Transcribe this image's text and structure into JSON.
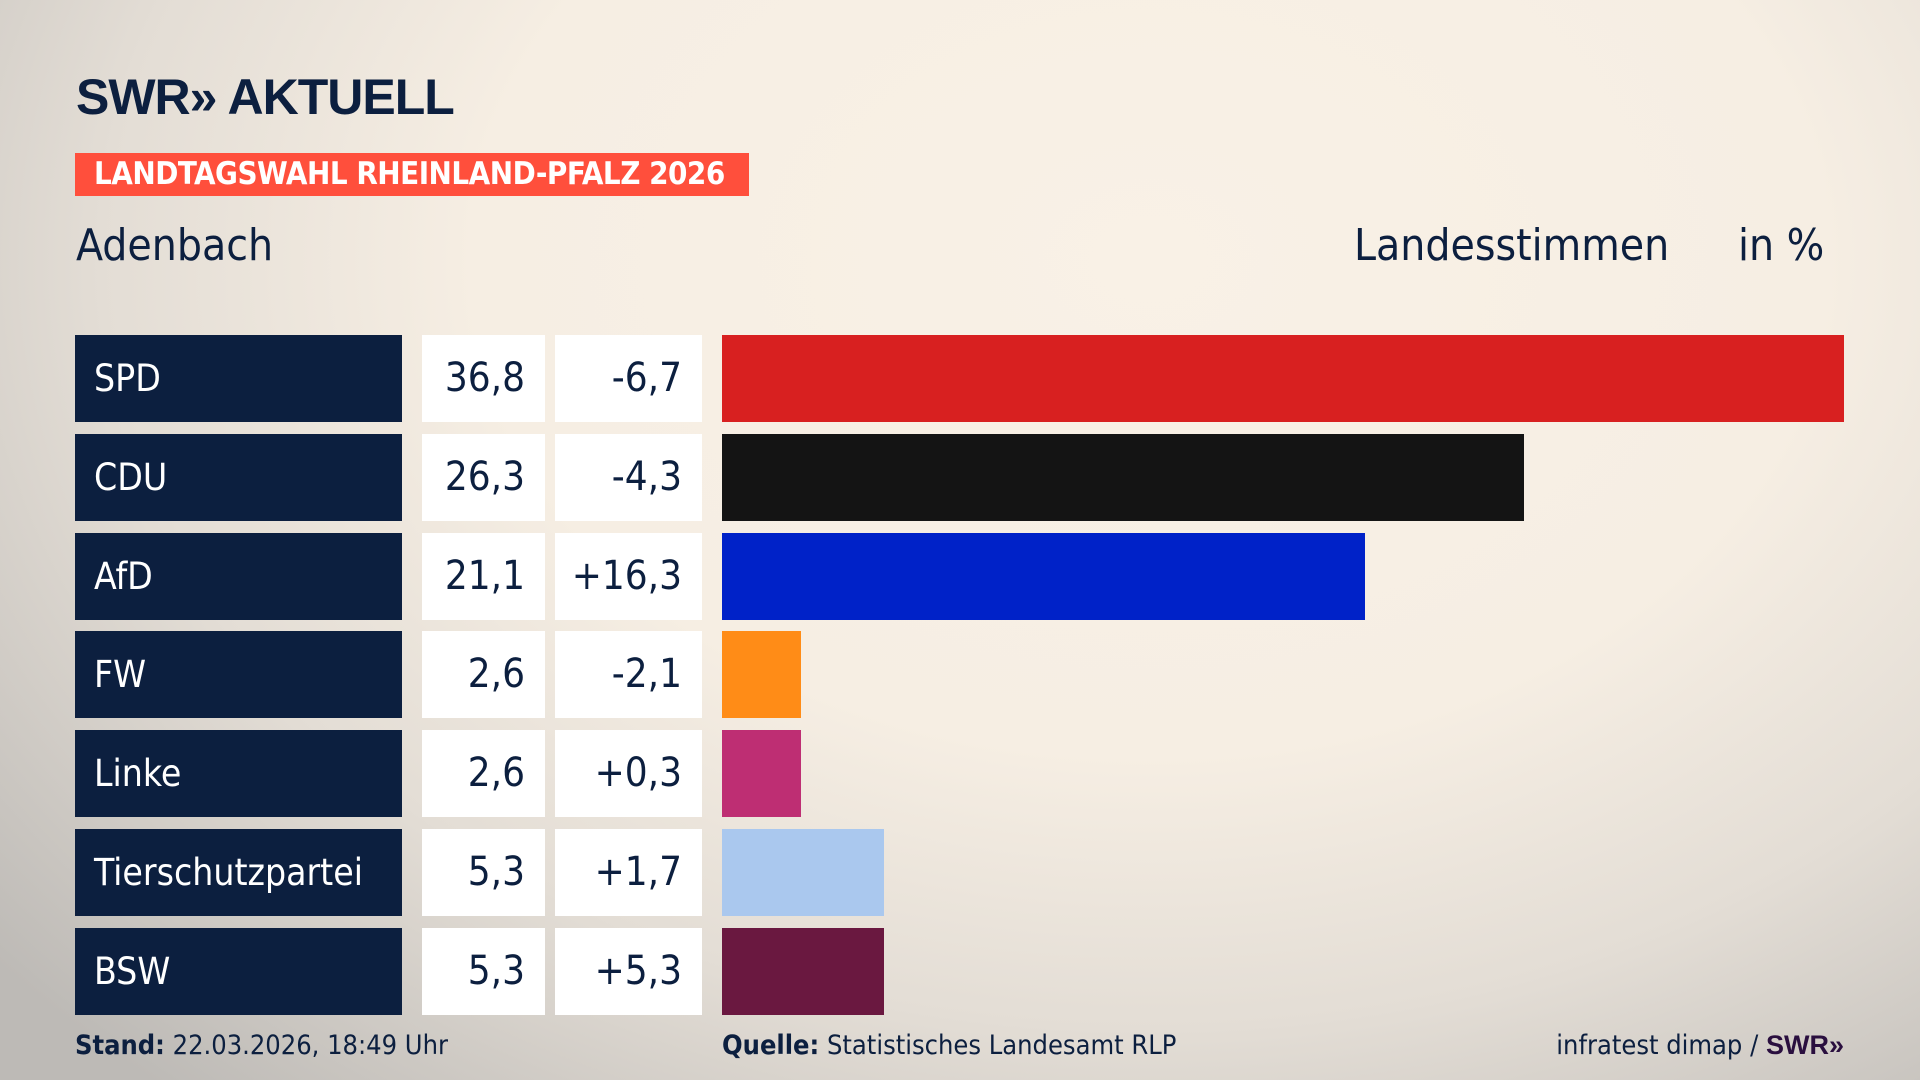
{
  "header": {
    "logo": "SWR» AKTUELL",
    "banner": "LANDTAGSWAHL RHEINLAND-PFALZ 2026",
    "region": "Adenbach",
    "measure": "Landesstimmen",
    "unit": "in %"
  },
  "colors": {
    "banner": "#ff4f3c",
    "party_box": "#0c1f3f"
  },
  "chart_data": {
    "type": "bar",
    "orientation": "horizontal",
    "categories": [
      "SPD",
      "CDU",
      "AfD",
      "FW",
      "Linke",
      "Tierschutzpartei",
      "BSW"
    ],
    "values": [
      36.8,
      26.3,
      21.1,
      2.6,
      2.6,
      5.3,
      5.3
    ],
    "labels": [
      "36,8",
      "26,3",
      "21,1",
      "2,6",
      "2,6",
      "5,3",
      "5,3"
    ],
    "changes": [
      "-6,7",
      "-4,3",
      "+16,3",
      "-2,1",
      "+0,3",
      "+1,7",
      "+5,3"
    ],
    "bar_colors": [
      "#d82020",
      "#141414",
      "#0022c8",
      "#ff8c17",
      "#be2e73",
      "#aac8ee",
      "#6a1840"
    ],
    "ylabel": "Landesstimmen",
    "unit": "in %",
    "xlim": [
      0,
      36.8
    ]
  },
  "footer": {
    "stand_label": "Stand:",
    "stand_value": "22.03.2026, 18:49 Uhr",
    "source_label": "Quelle:",
    "source_value": "Statistisches Landesamt RLP",
    "credit": "infratest dimap /",
    "credit_logo": "SWR»"
  }
}
